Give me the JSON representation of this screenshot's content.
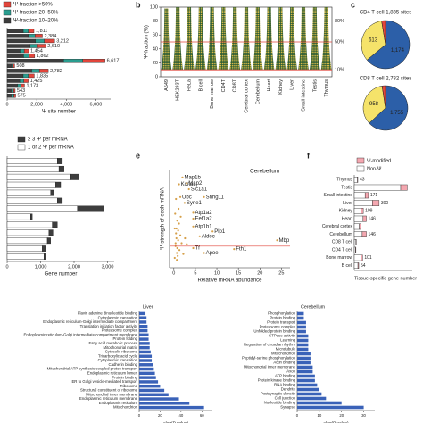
{
  "chart_data": [
    {
      "type": "hbar",
      "xlabel": "Ψ site number",
      "categories": [
        null,
        null,
        null,
        null,
        null,
        null,
        null,
        null,
        null,
        null,
        null,
        null,
        null,
        null
      ],
      "series": [
        {
          "name": "Ψ-fraction >50%",
          "color": "#e2453b",
          "values": [
            380,
            500,
            700,
            550,
            300,
            400,
            1500,
            100,
            600,
            400,
            300,
            250,
            110,
            120
          ]
        },
        {
          "name": "Ψ-fraction 20–50%",
          "color": "#2a9d8f",
          "values": [
            340,
            450,
            600,
            500,
            280,
            350,
            1300,
            100,
            520,
            350,
            270,
            220,
            100,
            110
          ]
        },
        {
          "name": "Ψ-fraction 10–20%",
          "color": "#3d3d3d",
          "values": [
            1091,
            1434,
            1912,
            1560,
            874,
            1112,
            3817,
            308,
            1662,
            1085,
            855,
            703,
            333,
            345
          ]
        }
      ],
      "total_labels": [
        "1,811",
        "2,384",
        "3,212",
        "2,610",
        "1,454",
        "1,862",
        "6,617",
        "508",
        "2,782",
        "1,835",
        "1,425",
        "1,173",
        "543",
        "575"
      ],
      "xlim": [
        0,
        7000
      ],
      "xticks": [
        0,
        {
          "value": 2000,
          "label": "2,000"
        },
        {
          "value": 4000,
          "label": "4,000"
        },
        {
          "value": 6000,
          "label": "6,000"
        }
      ]
    },
    {
      "type": "swarm",
      "panel": "b",
      "ylabel": "Ψ-fraction (%)",
      "categories": [
        "A549",
        "HEK293T",
        "HeLa",
        "B cell",
        "Bone marrow",
        "CD4T",
        "CD8T",
        "Cerebral cortex",
        "Cerebellum",
        "Heart",
        "Kidney",
        "Liver",
        "Small intestine",
        "Testis",
        "Thymus"
      ],
      "low": [
        10,
        10,
        10,
        10,
        10,
        10,
        10,
        10,
        10,
        10,
        10,
        10,
        10,
        10,
        10
      ],
      "high": [
        98,
        100,
        100,
        100,
        100,
        100,
        100,
        100,
        100,
        100,
        100,
        100,
        100,
        100,
        100
      ],
      "ylim": [
        0,
        100
      ],
      "yticks": [
        0,
        20,
        40,
        60,
        80,
        100
      ],
      "hlines": [
        {
          "value": 10,
          "label": "10%"
        },
        {
          "value": 50,
          "label": "50%"
        },
        {
          "value": 80,
          "label": "80%"
        }
      ],
      "line_color": "#e2453b"
    },
    {
      "type": "pie",
      "panel": "c",
      "title": "CD4 T cell 1,835 sites",
      "values": [
        1174,
        613,
        48
      ],
      "value_labels": [
        "1,174",
        "613",
        null
      ],
      "colors": [
        "#2c5fa8",
        "#f5e36a",
        "#e2453b"
      ]
    },
    {
      "type": "pie",
      "title": "CD8 T cell 2,782 sites",
      "values": [
        1755,
        958,
        69
      ],
      "value_labels": [
        "1,755",
        "958",
        null
      ],
      "colors": [
        "#2c5fa8",
        "#f5e36a",
        "#e2453b"
      ]
    },
    {
      "type": "hbar",
      "xlabel": "Gene number",
      "categories": [
        null,
        null,
        null,
        null,
        null,
        null,
        null,
        null,
        null,
        null,
        null,
        null,
        null
      ],
      "series": [
        {
          "name": "≥ 3 Ψ per mRNA",
          "color": "#3d3d3d",
          "values": [
            150,
            150,
            250,
            150,
            100,
            150,
            800,
            50,
            150,
            120,
            100,
            90,
            60
          ]
        },
        {
          "name": "1 or 2 Ψ per mRNA",
          "color": "#ffffff",
          "values": [
            1500,
            1550,
            1900,
            1450,
            1300,
            1500,
            2100,
            700,
            1350,
            1250,
            1200,
            1050,
            1100
          ]
        }
      ],
      "xlim": [
        0,
        3200
      ],
      "xticks": [
        0,
        {
          "value": 1000,
          "label": "1,000"
        },
        {
          "value": 2000,
          "label": "2,000"
        },
        {
          "value": 3000,
          "label": "3,000"
        }
      ]
    },
    {
      "type": "scatter",
      "panel": "e",
      "title": "Cerebellum",
      "xlabel": "Relative mRNA abundance",
      "ylabel": "Ψ-strength of each mRNA",
      "x": [
        2,
        1.2,
        3,
        3.5,
        1.5,
        2.5,
        7,
        4.5,
        4.5,
        4.5,
        9,
        6,
        24,
        4.5,
        7,
        14
      ],
      "y": [
        92,
        85,
        86,
        80,
        72,
        66,
        72,
        56,
        50,
        42,
        37,
        32,
        28,
        20,
        15,
        19
      ],
      "labels": [
        "Map1b",
        "Kcna1",
        "Map2",
        "Slc1a1",
        "Ubc",
        "Syne1",
        "Snhg11",
        "Atp1a2",
        "Eef1a2",
        "Atp1b1",
        "Plp1",
        "Aldoc",
        "Mbp",
        "Tf",
        "Apoe",
        "Fth1"
      ],
      "background_points": {
        "x": [
          0.2,
          0.4,
          0.5,
          0.7,
          0.8,
          1,
          1.1,
          1.3,
          0.3,
          0.6,
          0.9,
          1.5,
          1.8,
          2.2,
          0.5,
          0.7,
          1.2,
          2.6,
          0.4,
          1.6,
          0.8,
          3,
          0.2,
          1,
          0.6
        ],
        "y": [
          10,
          22,
          35,
          15,
          48,
          28,
          60,
          18,
          55,
          40,
          12,
          33,
          25,
          14,
          70,
          8,
          45,
          30,
          25,
          52,
          20,
          24,
          40,
          38,
          30
        ]
      },
      "point_color": "#d6a04a",
      "label_color": "#3a5bd9",
      "line_color": "#e2453b",
      "hline": 22,
      "vline": 1,
      "xlim": [
        -1,
        27
      ],
      "xticks": [
        0,
        5,
        10,
        15,
        20,
        25
      ],
      "ylim": [
        0,
        100
      ]
    },
    {
      "type": "hbar",
      "panel": "f",
      "xlabel": "Tissue-specific gene number",
      "categories": [
        "Thymus",
        "Testis",
        "Small intestine",
        "Liver",
        "Kidney",
        "Heart",
        "Cerebral cortex",
        "Cerebellum",
        "CD8 T cell",
        "CD4 T cell",
        "Bone marrow",
        "B cell"
      ],
      "series": [
        {
          "name": "Ψ-modified",
          "color": "#f4a7b0",
          "values": [
            5,
            80,
            40,
            80,
            25,
            40,
            20,
            50,
            5,
            5,
            20,
            10
          ]
        },
        {
          "name": "Non-Ψ",
          "color": "#ffffff",
          "values": [
            38,
            560,
            131,
            220,
            84,
            106,
            60,
            96,
            20,
            15,
            81,
            44
          ]
        }
      ],
      "total_labels": [
        "43",
        null,
        "171",
        "300",
        "109",
        "146",
        null,
        "146",
        null,
        null,
        "101",
        "54"
      ],
      "xlim": [
        0,
        700
      ]
    },
    {
      "type": "hbar",
      "title": "Liver",
      "xlabel": "−log(P value)",
      "color": "#3a62b8",
      "categories": [
        "Flavin adenine dinucleotide binding",
        "Cytoplasmic translation",
        "Endoplasmic reticulum-Golgi intermediate compartment",
        "Translation initiation factor activity",
        "Proteasome complex",
        "Endoplasmic reticulum-Golgi intermediate compartment membrane",
        "Protein folding",
        "Fatty acid metabolic process",
        "Mitochondrial matrix",
        "Cytosolic ribosome",
        "Tricarboxylic acid cycle",
        "Cytoplasmic translation",
        "Cadherin binding",
        "Mitochondrial ATP synthesis coupled proton transport",
        "Endoplasmic reticulum lumen",
        "Protein binding",
        "ER to Golgi vesicle-mediated transport",
        "Ribosome",
        "Structural constituent of ribosome",
        "Mitochondrial inner membrane",
        "Endoplasmic reticulum membrane",
        "Endoplasmic reticulum",
        "Mitochondrion"
      ],
      "values": [
        6,
        7,
        7,
        8,
        8,
        9,
        9,
        10,
        10,
        11,
        12,
        12,
        13,
        14,
        15,
        16,
        18,
        20,
        24,
        28,
        38,
        48,
        62
      ],
      "xlim": [
        0,
        70
      ],
      "xticks": [
        0,
        20,
        40,
        60
      ]
    },
    {
      "type": "hbar",
      "title": "Cerebellum",
      "xlabel": "−log(P value)",
      "color": "#3a62b8",
      "categories": [
        "Phosphorylation",
        "Protein binding",
        "Protein transport",
        "Proteasome complex",
        "Unfolded protein binding",
        "GTPase activity",
        "Learning",
        "Regulation of circadian rhythm",
        "Microtubule",
        "Mitochondrion",
        "Peptidyl-serine phosphorylation",
        "Actin binding",
        "Mitochondrial inner membrane",
        "Axon",
        "ATP binding",
        "Protein kinase binding",
        "RNA binding",
        "Dendrite",
        "Postsynaptic density",
        "Cell junction",
        "Nucleotide binding",
        "Synapse"
      ],
      "values": [
        3,
        3,
        4,
        4,
        4,
        5,
        5,
        5,
        5,
        6,
        6,
        6,
        7,
        7,
        8,
        8,
        9,
        10,
        11,
        13,
        20,
        30
      ],
      "xlim": [
        0,
        35
      ],
      "xticks": [
        0,
        10,
        20,
        30
      ]
    }
  ]
}
